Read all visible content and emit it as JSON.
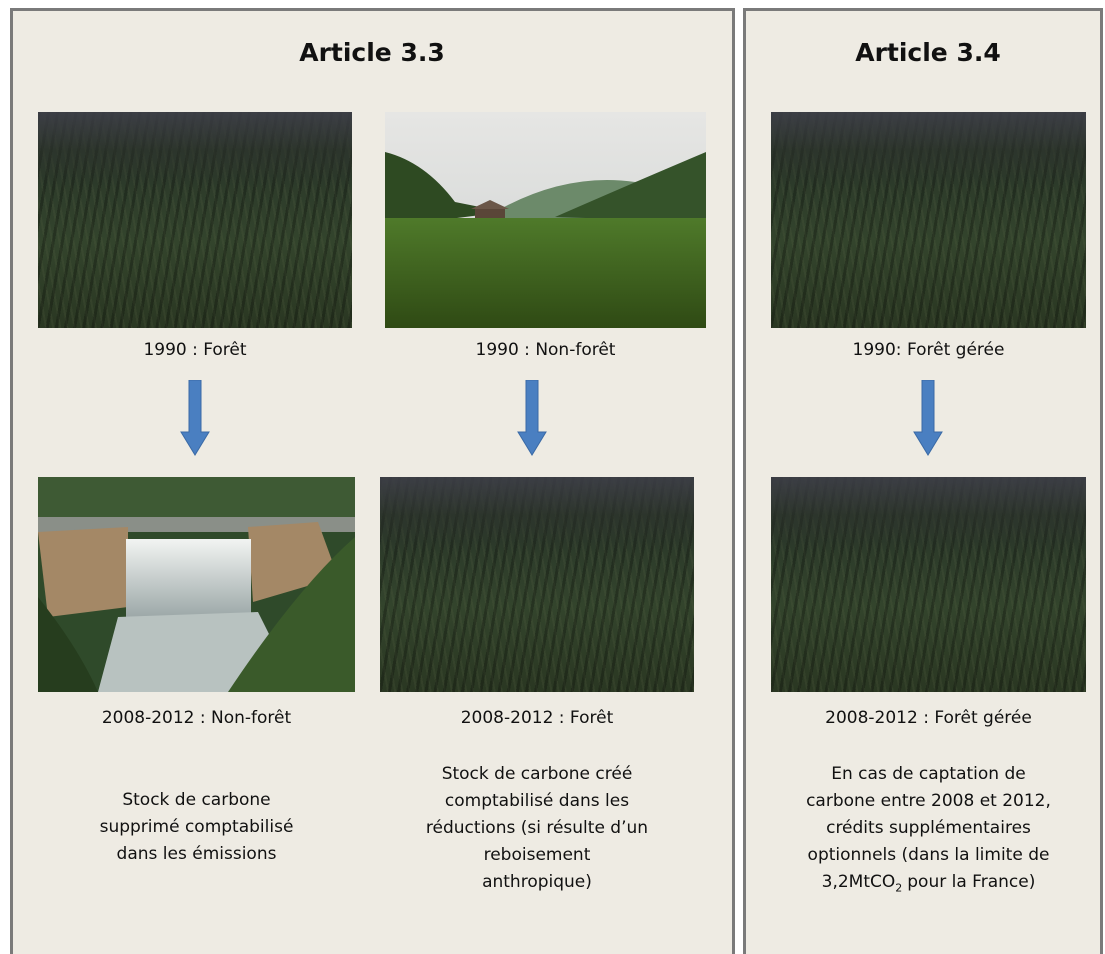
{
  "panels": [
    {
      "title": "Article 3.3",
      "columns": [
        {
          "before_label": "1990 : Forêt",
          "after_label": "2008-2012 : Non-forêt",
          "description": [
            "Stock de carbone",
            "supprimé comptabilisé",
            "dans les émissions"
          ]
        },
        {
          "before_label": "1990 : Non-forêt",
          "after_label": "2008-2012 : Forêt",
          "description": [
            "Stock de carbone créé",
            "comptabilisé dans les",
            "réductions (si résulte d’un",
            "reboisement",
            "anthropique)"
          ]
        }
      ]
    },
    {
      "title": "Article 3.4",
      "columns": [
        {
          "before_label": "1990: Forêt gérée",
          "after_label": "2008-2012 : Forêt gérée",
          "description": [
            "En cas de captation de",
            "carbone entre 2008 et 2012,",
            "crédits supplémentaires",
            "optionnels (dans la limite de",
            {
              "text": "3,2MtCO",
              "sub": "2",
              "tail": "pour la France)"
            }
          ]
        }
      ]
    }
  ]
}
